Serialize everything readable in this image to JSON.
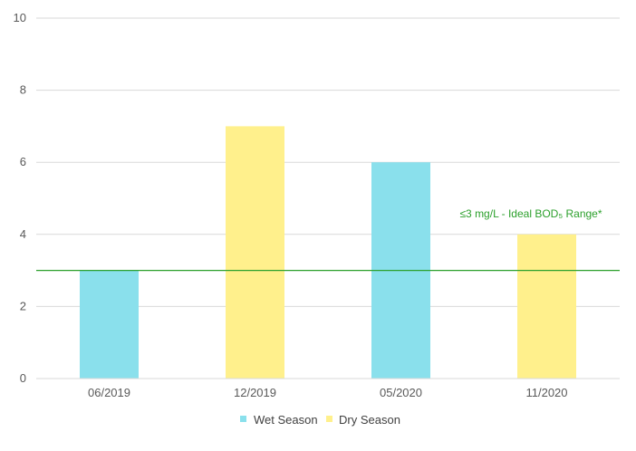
{
  "chart_data": {
    "type": "bar",
    "categories": [
      "06/2019",
      "12/2019",
      "05/2020",
      "11/2020"
    ],
    "values": [
      3,
      7,
      6,
      4
    ],
    "bar_series": [
      "Wet Season",
      "Dry Season",
      "Wet Season",
      "Dry Season"
    ],
    "series": [
      {
        "name": "Wet Season",
        "color": "#8ae0ec"
      },
      {
        "name": "Dry Season",
        "color": "#fff08c"
      }
    ],
    "ylim": [
      0,
      10
    ],
    "yticks": [
      0,
      2,
      4,
      6,
      8,
      10
    ],
    "grid": true,
    "legend": "bottom",
    "reference_line": {
      "value": 3,
      "color": "#2ca02c",
      "label": "≤3 mg/L - Ideal BOD₅ Range*"
    }
  }
}
